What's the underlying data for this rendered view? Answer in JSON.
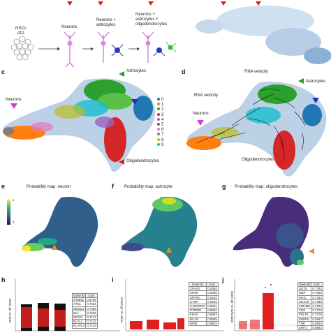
{
  "panel_a": {
    "nsc_label_line1": "NSCs",
    "nsc_label_line2": "d12",
    "stage_labels": [
      "Neurons",
      "Neurons +\nastrocytes",
      "Neurons +\nastrocytes +\noligodendrocytes"
    ]
  },
  "panel_c": {
    "letter": "c",
    "astrocytes": "Astrocytes",
    "neurons": "Neurons",
    "oligodendrocytes": "Oligodendrocytes",
    "legend": [
      {
        "label": "0",
        "color": "#1f77b4"
      },
      {
        "label": "1",
        "color": "#ff7f0e"
      },
      {
        "label": "2",
        "color": "#2ca02c"
      },
      {
        "label": "3",
        "color": "#d62728"
      },
      {
        "label": "4",
        "color": "#9467bd"
      },
      {
        "label": "5",
        "color": "#8c564b"
      },
      {
        "label": "6",
        "color": "#e377c2"
      },
      {
        "label": "7",
        "color": "#7f7f7f"
      },
      {
        "label": "8",
        "color": "#bcbd22"
      },
      {
        "label": "9",
        "color": "#17becf"
      }
    ]
  },
  "panel_d": {
    "letter": "d",
    "title": "RNA velocity",
    "side_title": "RNA velocity",
    "astrocytes": "Astrocytes",
    "neurons": "Neurons",
    "oligodendrocytes": "Oligodendrocytes"
  },
  "panel_e": {
    "letter": "e",
    "title": "Probability map: neuron",
    "cbar_top": "1",
    "cbar_bottom": "0"
  },
  "panel_f": {
    "letter": "f",
    "title": "Probability map: astrocyte"
  },
  "panel_g": {
    "letter": "g",
    "title": "Probability map: oligodendrocytes"
  },
  "panel_h": {
    "letter": "h",
    "ylabel": "uron vs. all states",
    "table_header": [
      "Gene ID",
      "Corr."
    ],
    "table_rows": [
      [
        "STMN2",
        "0.8789"
      ],
      [
        "ATN1",
        "0.7631"
      ],
      [
        "SEZ6L2",
        "0.7466"
      ],
      [
        "INA",
        "0.7238"
      ],
      [
        "NEGO",
        "0.7172"
      ],
      [
        "ELFL4",
        "0.7142"
      ],
      [
        "ELAVL4",
        "0.7134"
      ]
    ]
  },
  "panel_i": {
    "letter": "i",
    "ylabel": "ocyte vs. all states",
    "table_header": [
      "Gene ID",
      "Corr."
    ],
    "table_rows": [
      [
        "ZFHX4",
        "0.6354"
      ],
      [
        "CD99",
        "0.6358"
      ],
      [
        "SPARC",
        "0.6234"
      ],
      [
        "CTGF",
        "0.6226"
      ],
      [
        "C10ORF87",
        "0.6034"
      ],
      [
        "PTPRZ1",
        "0.5962"
      ],
      [
        "FDAS",
        "0.5953"
      ],
      [
        "BCAN",
        "0.5945"
      ],
      [
        "NFIB",
        "0.5923"
      ]
    ]
  },
  "panel_j": {
    "letter": "j",
    "ylabel": "endrocyte vs. all states",
    "table_header": [
      "Gene ID",
      "Corr."
    ],
    "table_rows": [
      [
        "UGT8",
        "0.7794"
      ],
      [
        "MBP",
        "0.7656"
      ],
      [
        "MAG",
        "0.7444"
      ],
      [
        "SOX10",
        "0.7336"
      ],
      [
        "ZNF488",
        "0.7304"
      ],
      [
        "CNP",
        "0.7176"
      ],
      [
        "PDLP1",
        "0.7079"
      ],
      [
        "ENPP6",
        "0.6967"
      ],
      [
        "TNR",
        "0.6902"
      ],
      [
        "SIRT2",
        "0.6893"
      ]
    ]
  },
  "colors": {
    "neuron_arrow": "#d63ad6",
    "astro_arrow": "#2a9d2a",
    "astro_arrow2": "#1d2fc9",
    "oligo_arrow": "#d62020",
    "prob_arrow": "#f08a24"
  }
}
